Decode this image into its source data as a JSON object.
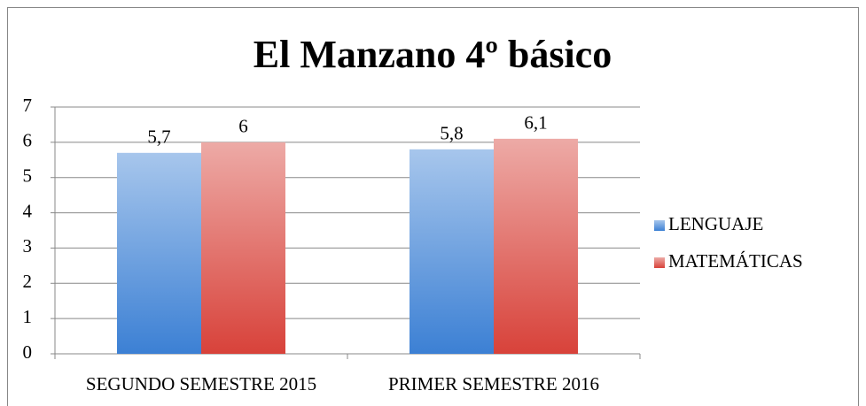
{
  "chart_data": {
    "type": "bar",
    "title": "El Manzano 4º básico",
    "categories": [
      "SEGUNDO SEMESTRE 2015",
      "PRIMER SEMESTRE 2016"
    ],
    "series": [
      {
        "name": "LENGUAJE",
        "color": "#3c80d4",
        "values": [
          5.7,
          5.8
        ],
        "value_labels": [
          "5,7",
          "5,8"
        ]
      },
      {
        "name": "MATEMÁTICAS",
        "color": "#d8423a",
        "values": [
          6,
          6.1
        ],
        "value_labels": [
          "6",
          "6,1"
        ]
      }
    ],
    "ylim": [
      0,
      7
    ],
    "yticks": [
      0,
      1,
      2,
      3,
      4,
      5,
      6,
      7
    ],
    "grid": true,
    "legend": "right"
  }
}
